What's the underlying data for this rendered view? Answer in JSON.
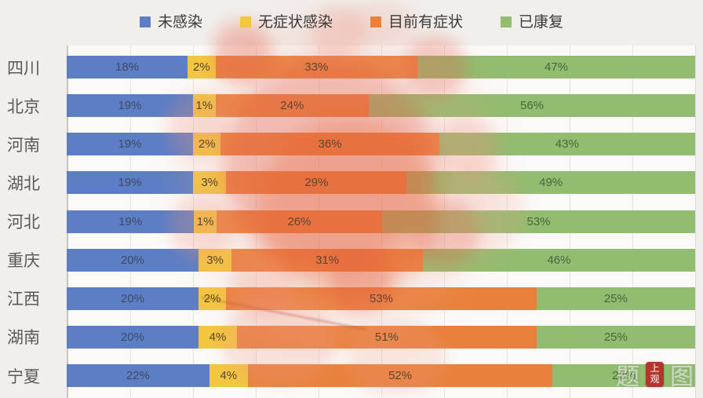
{
  "legend": {
    "items": [
      {
        "label": "未感染",
        "color": "#5b7ec5"
      },
      {
        "label": "无症状感染",
        "color": "#f3c63f"
      },
      {
        "label": "目前有症状",
        "color": "#e9813c"
      },
      {
        "label": "已康复",
        "color": "#92bc6f"
      }
    ]
  },
  "chart_data": {
    "type": "bar",
    "orientation": "horizontal",
    "stacked": true,
    "unit": "%",
    "categories": [
      "四川",
      "北京",
      "河南",
      "湖北",
      "河北",
      "重庆",
      "江西",
      "湖南",
      "宁夏"
    ],
    "series": [
      {
        "name": "未感染",
        "color": "#5b7ec5",
        "label_color": "#3f4a63",
        "values": [
          18,
          19,
          19,
          19,
          19,
          20,
          20,
          20,
          22
        ]
      },
      {
        "name": "无症状感染",
        "color": "#f3c63f",
        "label_color": "#55492a",
        "values": [
          2,
          1,
          2,
          3,
          1,
          3,
          2,
          4,
          4
        ]
      },
      {
        "name": "目前有症状",
        "color": "#e9813c",
        "label_color": "#5d4531",
        "values": [
          33,
          24,
          36,
          29,
          26,
          31,
          53,
          51,
          52
        ]
      },
      {
        "name": "已康复",
        "color": "#92bc6f",
        "label_color": "#47663a",
        "values": [
          47,
          56,
          43,
          49,
          53,
          46,
          25,
          25,
          22
        ]
      }
    ],
    "xlim": [
      0,
      100
    ],
    "grid": "vertical gridlines every 10%",
    "legend_position": "top",
    "title": ""
  },
  "watermark": {
    "ghost_left": "题",
    "ghost_right": "图",
    "seal_line1": "上",
    "seal_line2": "观"
  }
}
